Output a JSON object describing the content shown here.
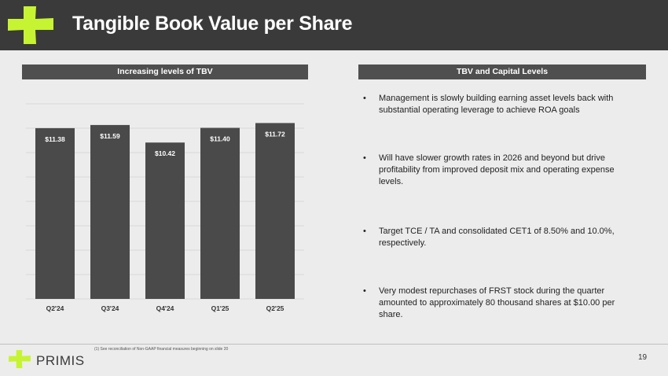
{
  "header": {
    "title": "Tangible Book Value per Share"
  },
  "left_panel": {
    "heading": "Increasing levels of TBV"
  },
  "right_panel": {
    "heading": "TBV and Capital Levels",
    "bullets": [
      "Management is slowly building earning asset levels back with substantial operating leverage to achieve ROA goals",
      "Will have slower growth rates in 2026 and beyond but drive profitability from improved deposit mix and operating expense levels.",
      "Target TCE / TA and consolidated CET1 of 8.50% and 10.0%, respectively.",
      "Very modest repurchases of FRST stock during the quarter amounted to approximately 80 thousand shares at $10.00 per share."
    ]
  },
  "chart_data": {
    "type": "bar",
    "title": "Increasing levels of TBV",
    "categories": [
      "Q2'24",
      "Q3'24",
      "Q4'24",
      "Q1'25",
      "Q2'25"
    ],
    "values": [
      11.38,
      11.59,
      10.42,
      11.4,
      11.72
    ],
    "labels": [
      "$11.38",
      "$11.59",
      "$10.42",
      "$11.40",
      "$11.72"
    ],
    "xlabel": "",
    "ylabel": "",
    "ylim": [
      0,
      13.0
    ],
    "grid": true,
    "bar_color": "#4a4a4a",
    "label_color": "#ffffff"
  },
  "footer": {
    "footnote": "(1)   See reconciliation of Non-GAAP financial measures beginning on slide 20",
    "brand": "PRIMIS",
    "page_number": "19"
  },
  "colors": {
    "accent": "#c6f432",
    "header_bg": "#3a3a3a",
    "panel_bar": "#4f4f4f",
    "background": "#ececec"
  },
  "icons": {
    "logo": "primis-plus-icon",
    "bullet": "bullet-dot-icon"
  }
}
